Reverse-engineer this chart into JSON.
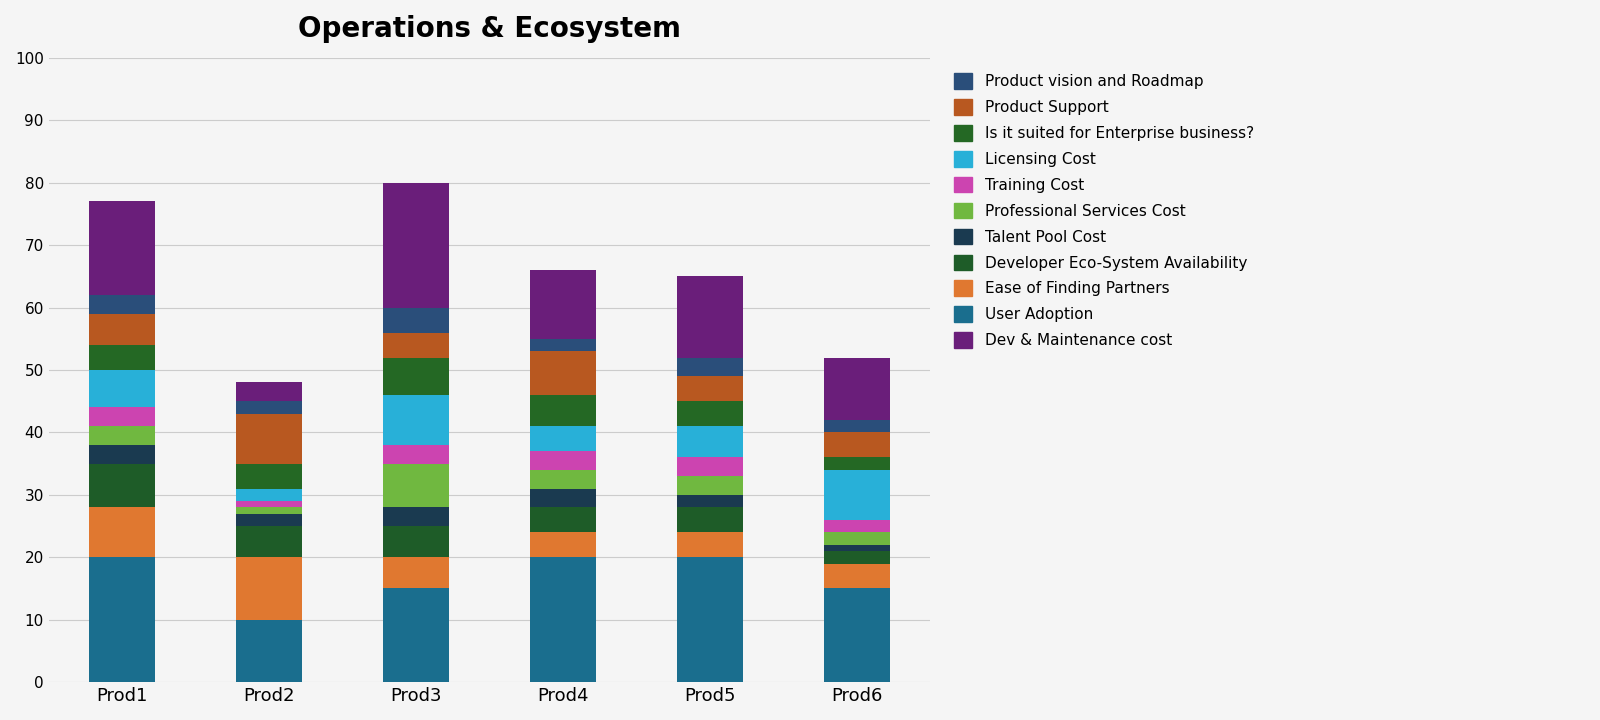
{
  "title": "Operations & Ecosystem",
  "title_fontsize": 20,
  "title_fontweight": "bold",
  "products": [
    "Prod1",
    "Prod2",
    "Prod3",
    "Prod4",
    "Prod5",
    "Prod6"
  ],
  "categories": [
    "User Adoption",
    "Ease of Finding Partners",
    "Developer Eco-System Availability",
    "Talent Pool Cost",
    "Professional Services Cost",
    "Training Cost",
    "Licensing Cost",
    "Is it suited for Enterprise business?",
    "Product Support",
    "Product vision and Roadmap",
    "Dev & Maintenance cost"
  ],
  "colors": [
    "#1a6e8e",
    "#e07830",
    "#1e5c28",
    "#1a3a50",
    "#70b840",
    "#cc44b0",
    "#28b0d8",
    "#246824",
    "#b85820",
    "#2a4e7a",
    "#6a1e7a"
  ],
  "values": {
    "Prod1": [
      20,
      8,
      7,
      3,
      3,
      3,
      6,
      4,
      5,
      3,
      15
    ],
    "Prod2": [
      10,
      10,
      5,
      2,
      1,
      1,
      2,
      4,
      8,
      2,
      3
    ],
    "Prod3": [
      15,
      5,
      5,
      3,
      7,
      3,
      8,
      6,
      4,
      4,
      20
    ],
    "Prod4": [
      20,
      4,
      4,
      3,
      3,
      3,
      4,
      5,
      7,
      2,
      11
    ],
    "Prod5": [
      20,
      4,
      4,
      2,
      3,
      3,
      5,
      4,
      4,
      3,
      13
    ],
    "Prod6": [
      15,
      4,
      2,
      1,
      2,
      2,
      8,
      2,
      4,
      2,
      10
    ]
  },
  "ylim": [
    0,
    100
  ],
  "yticks": [
    0,
    10,
    20,
    30,
    40,
    50,
    60,
    70,
    80,
    90,
    100
  ],
  "background_color": "#f5f5f5",
  "grid_color": "#cccccc",
  "bar_width": 0.45
}
